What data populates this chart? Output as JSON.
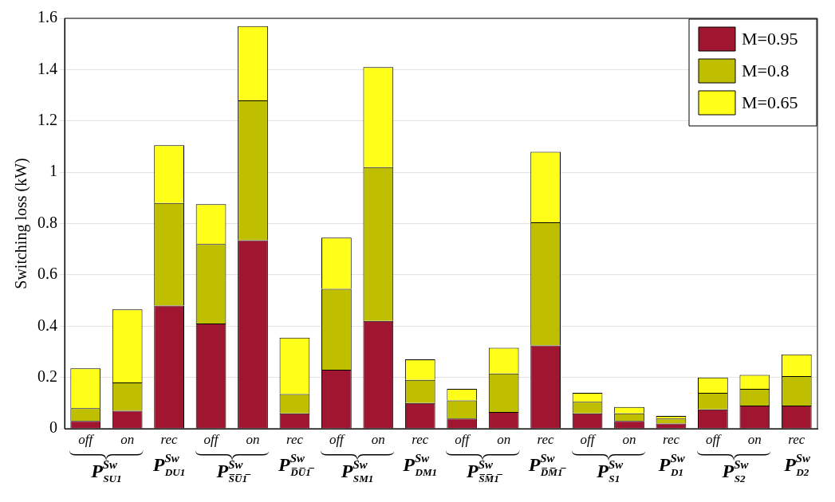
{
  "chart_data": {
    "type": "bar",
    "stacked": true,
    "ylabel": "Switching loss (kW)",
    "categories": [
      "off\nP$^{Sw}$$_{SU1}$",
      "on",
      "rec\nP$^{Sw}$$_{DU1}$",
      "off\nP$^{Sw}$$_{S̅U̅1̅}$",
      "on",
      "rec\nP$^{Sw}$$_{D̅U̅1̅}$",
      "off\nP$^{Sw}$$_{SM1}$",
      "on",
      "rec\nP$^{Sw}$$_{DM1}$",
      "off\nP$^{Sw}$$_{S̅M̅1̅}$",
      "on",
      "rec\nP$^{Sw}$$_{D̅M̅1̅}$",
      "off\nP$^{Sw}$$_{S1}$",
      "on",
      "rec\nP$^{Sw}$$_{D1}$",
      "off\nP$^{Sw}$$_{S2}$",
      "on",
      "rec\nP$^{Sw}$$_{D2}$"
    ],
    "series": [
      {
        "name": "M=0.95",
        "color": "#a01530",
        "values": [
          0.03,
          0.07,
          0.48,
          0.41,
          0.735,
          0.06,
          0.23,
          0.42,
          0.1,
          0.04,
          0.065,
          0.325,
          0.06,
          0.03,
          0.02,
          0.075,
          0.09,
          0.09
        ]
      },
      {
        "name": "M=0.8",
        "color": "#bfbf00",
        "values": [
          0.05,
          0.11,
          0.4,
          0.31,
          0.545,
          0.075,
          0.315,
          0.6,
          0.09,
          0.07,
          0.15,
          0.48,
          0.045,
          0.03,
          0.02,
          0.065,
          0.065,
          0.115
        ]
      },
      {
        "name": "M=0.65",
        "color": "#ffff1a",
        "values": [
          0.155,
          0.285,
          0.225,
          0.155,
          0.29,
          0.22,
          0.2,
          0.39,
          0.08,
          0.045,
          0.1,
          0.275,
          0.035,
          0.025,
          0.01,
          0.06,
          0.055,
          0.085
        ]
      }
    ],
    "ylim": [
      0,
      1.6
    ],
    "yticks": [
      0,
      0.2,
      0.4,
      0.6,
      0.8,
      1,
      1.2,
      1.4,
      1.6
    ],
    "grid": "y",
    "legend": "top right"
  }
}
